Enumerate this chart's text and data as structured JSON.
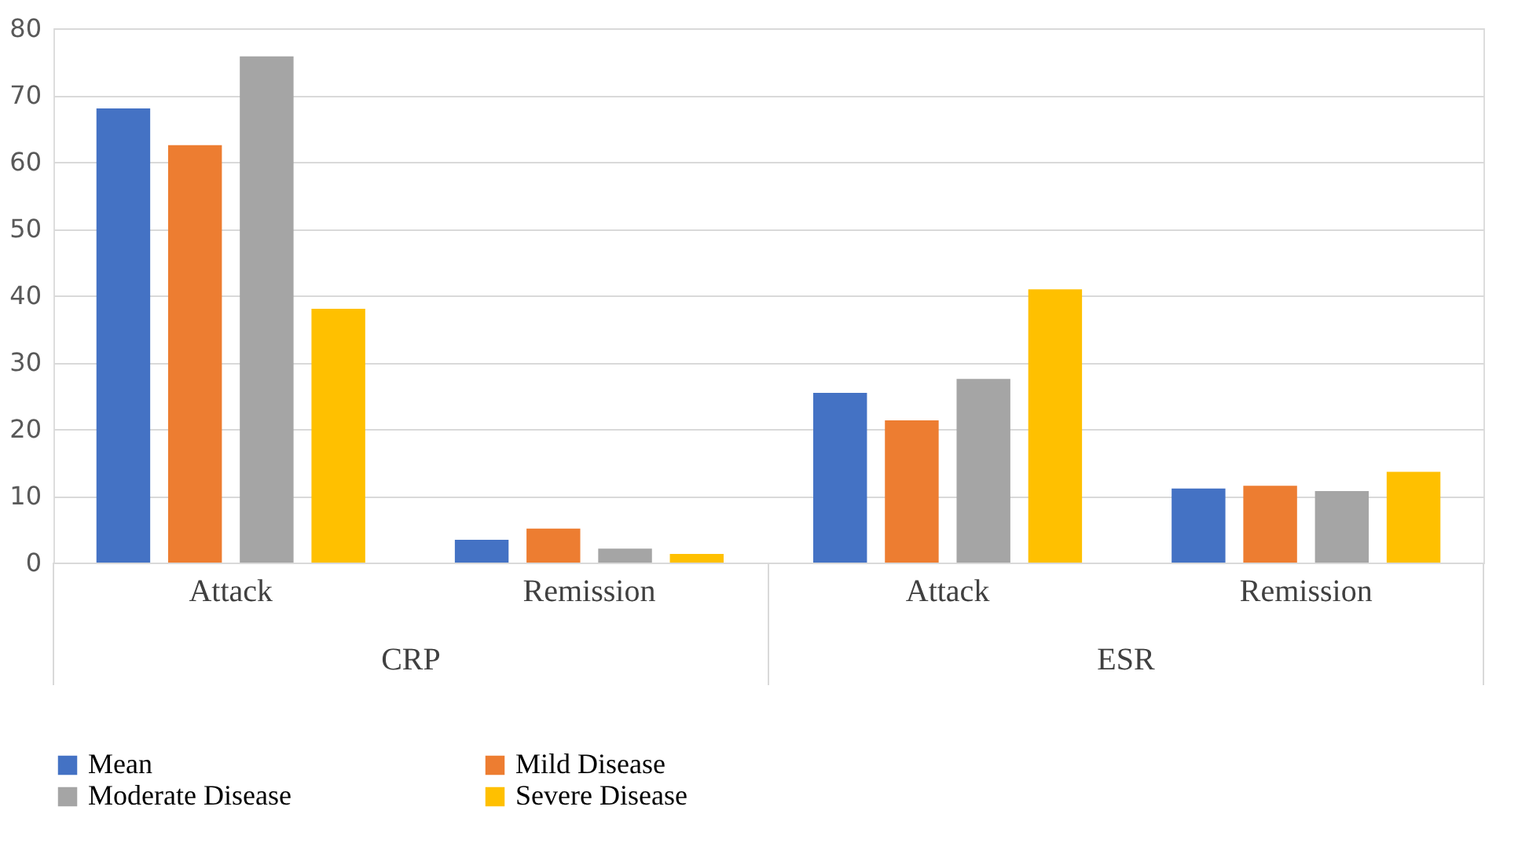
{
  "chart_data": {
    "type": "bar",
    "categories": [
      "Attack",
      "Remission",
      "Attack",
      "Remission"
    ],
    "annotations": [
      "CRP",
      "ESR"
    ],
    "series": [
      {
        "name": "Mean",
        "color": "#4472c4",
        "values": [
          68.0,
          3.4,
          25.4,
          11.1
        ]
      },
      {
        "name": "Mild Disease",
        "color": "#ed7d31",
        "values": [
          62.5,
          5.1,
          21.3,
          11.5
        ]
      },
      {
        "name": "Moderate Disease",
        "color": "#a5a5a5",
        "values": [
          75.8,
          2.1,
          27.5,
          10.7
        ]
      },
      {
        "name": "Severe Disease",
        "color": "#ffc000",
        "values": [
          38.0,
          1.3,
          40.9,
          13.6
        ]
      }
    ],
    "ylim": [
      0,
      80
    ],
    "yticks": [
      0,
      10,
      20,
      30,
      40,
      50,
      60,
      70,
      80
    ],
    "grid": "y",
    "legend": "bottom"
  }
}
